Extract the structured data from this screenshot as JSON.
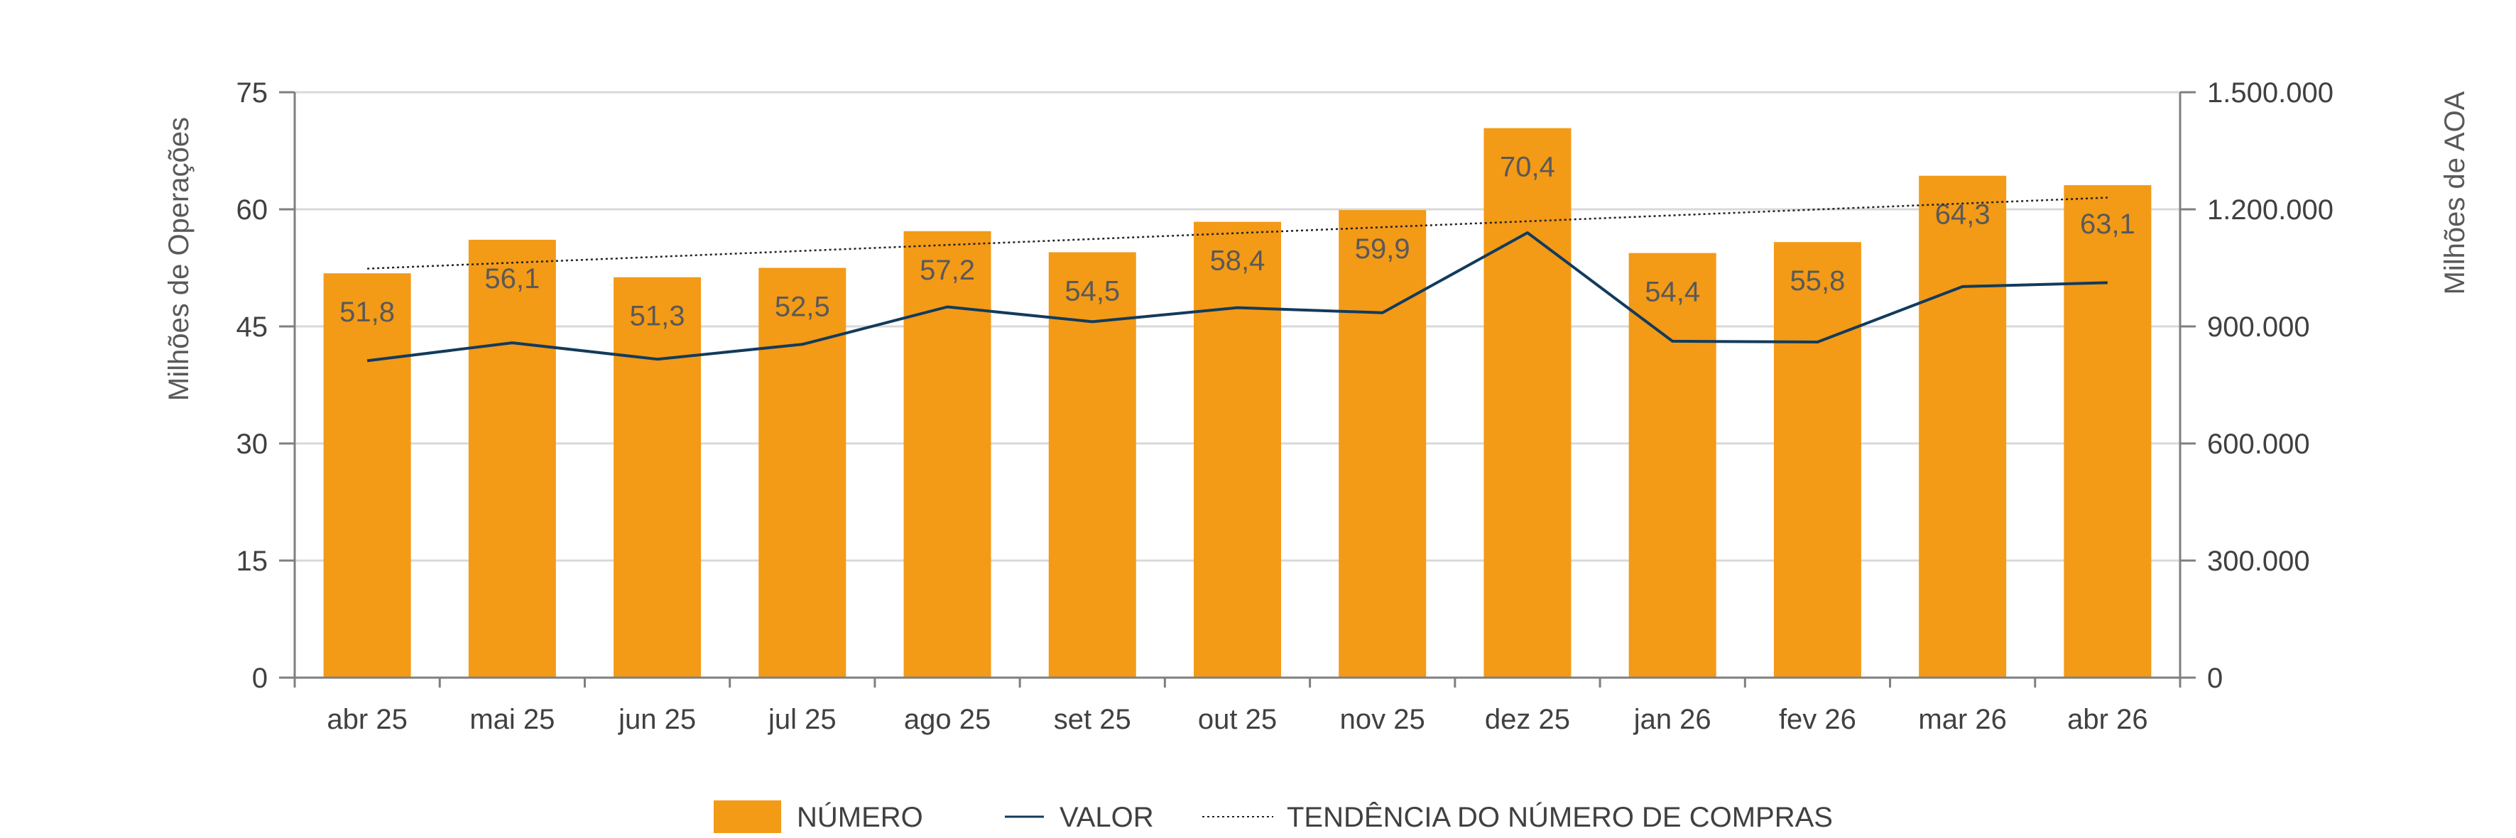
{
  "colors": {
    "bar": "#F39A17",
    "line": "#123B5C",
    "trend": "#222222",
    "grid": "#D9D9D9",
    "axis": "#7F7F7F"
  },
  "chart_data": {
    "type": "bar",
    "categories": [
      "abr 25",
      "mai 25",
      "jun 25",
      "jul 25",
      "ago 25",
      "set 25",
      "out 25",
      "nov 25",
      "dez 25",
      "jan 26",
      "fev 26",
      "mar 26",
      "abr 26"
    ],
    "series": [
      {
        "name": "NÚMERO",
        "axis": "left",
        "type": "bar",
        "values": [
          51.8,
          56.1,
          51.3,
          52.5,
          57.2,
          54.5,
          58.4,
          59.9,
          70.4,
          54.4,
          55.8,
          64.3,
          63.1
        ],
        "labels": [
          "51,8",
          "56,1",
          "51,3",
          "52,5",
          "57,2",
          "54,5",
          "58,4",
          "59,9",
          "70,4",
          "54,4",
          "55,8",
          "64,3",
          "63,1"
        ]
      },
      {
        "name": "VALOR",
        "axis": "right",
        "type": "line",
        "values": [
          812000,
          858000,
          816000,
          854000,
          950000,
          912000,
          948000,
          935000,
          1140000,
          862000,
          860000,
          1002000,
          1012000
        ]
      },
      {
        "name": "TENDÊNCIA DO NÚMERO DE COMPRAS",
        "axis": "left",
        "type": "trendline",
        "style": "dotted",
        "values": [
          52.4,
          53.2,
          53.9,
          54.7,
          55.4,
          56.2,
          56.9,
          57.7,
          58.5,
          59.3,
          60.0,
          60.8,
          61.5
        ]
      }
    ],
    "y_left": {
      "label": "Milhões de Operações",
      "range": [
        0,
        75
      ],
      "ticks": [
        0,
        15,
        30,
        45,
        60,
        75
      ],
      "tick_labels": [
        "0",
        "15",
        "30",
        "45",
        "60",
        "75"
      ]
    },
    "y_right": {
      "label": "Milhões de AOA",
      "range": [
        0,
        1500000
      ],
      "ticks": [
        0,
        300000,
        600000,
        900000,
        1200000,
        1500000
      ],
      "tick_labels": [
        "0",
        "300.000",
        "600.000",
        "900.000",
        "1.200.000",
        "1.500.000"
      ]
    },
    "grid": true,
    "legend_position": "bottom-center"
  }
}
